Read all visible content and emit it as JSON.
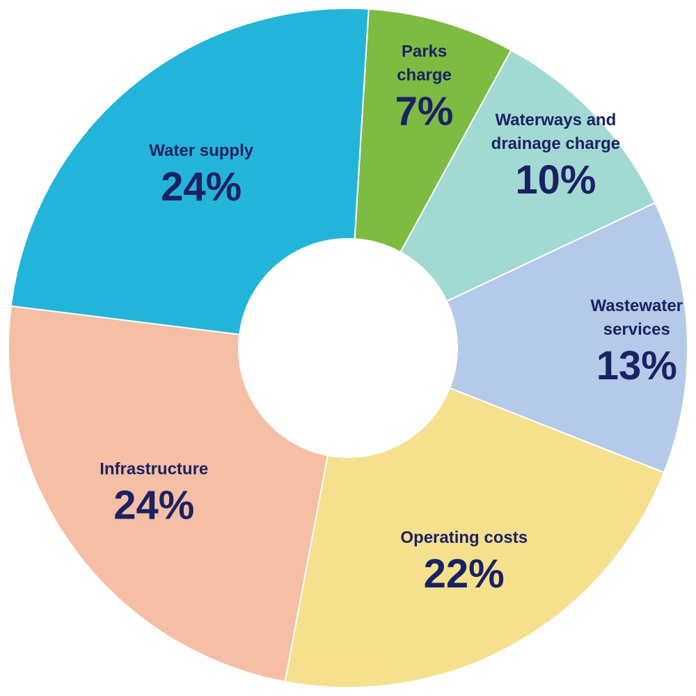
{
  "chart_data": {
    "type": "pie",
    "donut": true,
    "start_angle_deg": 3.5,
    "direction": "clockwise",
    "label_color": "#1c2163",
    "slices": [
      {
        "lines": [
          "Parks",
          "charge"
        ],
        "value": 7,
        "value_label": "7%",
        "color": "#7dbb42"
      },
      {
        "lines": [
          "Waterways and",
          "drainage charge"
        ],
        "value": 10,
        "value_label": "10%",
        "color": "#a3d9d3"
      },
      {
        "lines": [
          "Wastewater",
          "services"
        ],
        "value": 13,
        "value_label": "13%",
        "color": "#b5c9e8"
      },
      {
        "lines": [
          "Operating costs"
        ],
        "value": 22,
        "value_label": "22%",
        "color": "#f5e08e"
      },
      {
        "lines": [
          "Infrastructure"
        ],
        "value": 24,
        "value_label": "24%",
        "color": "#f4bfa5"
      },
      {
        "lines": [
          "Water supply"
        ],
        "value": 24,
        "value_label": "24%",
        "color": "#23b5d9"
      }
    ]
  }
}
